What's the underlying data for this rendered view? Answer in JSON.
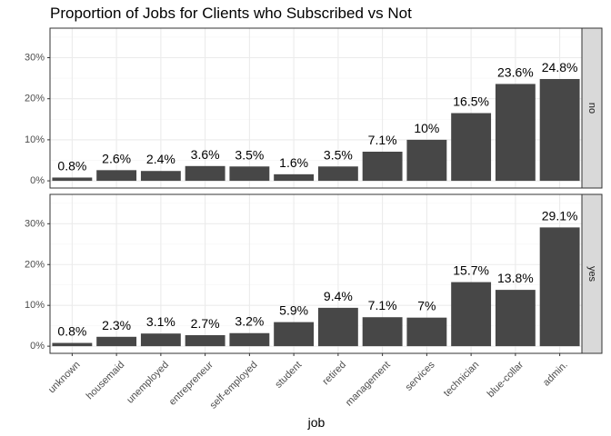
{
  "chart_data": {
    "type": "bar",
    "title": "Proportion of Jobs for Clients who Subscribed vs Not",
    "xlabel": "job",
    "ylabel": "",
    "categories": [
      "unknown",
      "housemaid",
      "unemployed",
      "entrepreneur",
      "self-employed",
      "student",
      "retired",
      "management",
      "services",
      "technician",
      "blue-collar",
      "admin."
    ],
    "ylim": [
      0,
      37
    ],
    "y_ticks": [
      {
        "value": 0,
        "label": "0%"
      },
      {
        "value": 10,
        "label": "10%"
      },
      {
        "value": 20,
        "label": "20%"
      },
      {
        "value": 30,
        "label": "30%"
      }
    ],
    "grid": true,
    "facets": [
      {
        "strip": "no",
        "values": [
          0.8,
          2.6,
          2.4,
          3.6,
          3.5,
          1.6,
          3.5,
          7.1,
          10,
          16.5,
          23.6,
          24.8
        ],
        "labels": [
          "0.8%",
          "2.6%",
          "2.4%",
          "3.6%",
          "3.5%",
          "1.6%",
          "3.5%",
          "7.1%",
          "10%",
          "16.5%",
          "23.6%",
          "24.8%"
        ]
      },
      {
        "strip": "yes",
        "values": [
          0.8,
          2.3,
          3.1,
          2.7,
          3.2,
          5.9,
          9.4,
          7.1,
          7,
          15.7,
          13.8,
          29.1
        ],
        "labels": [
          "0.8%",
          "2.3%",
          "3.1%",
          "2.7%",
          "3.2%",
          "5.9%",
          "9.4%",
          "7.1%",
          "7%",
          "15.7%",
          "13.8%",
          "29.1%"
        ]
      }
    ],
    "colors": {
      "bar": "#474747",
      "panel_border": "#333333",
      "grid_major": "#ebebeb",
      "grid_minor": "#f5f5f5",
      "strip_fill": "#d9d9d9",
      "strip_border": "#333333"
    }
  }
}
